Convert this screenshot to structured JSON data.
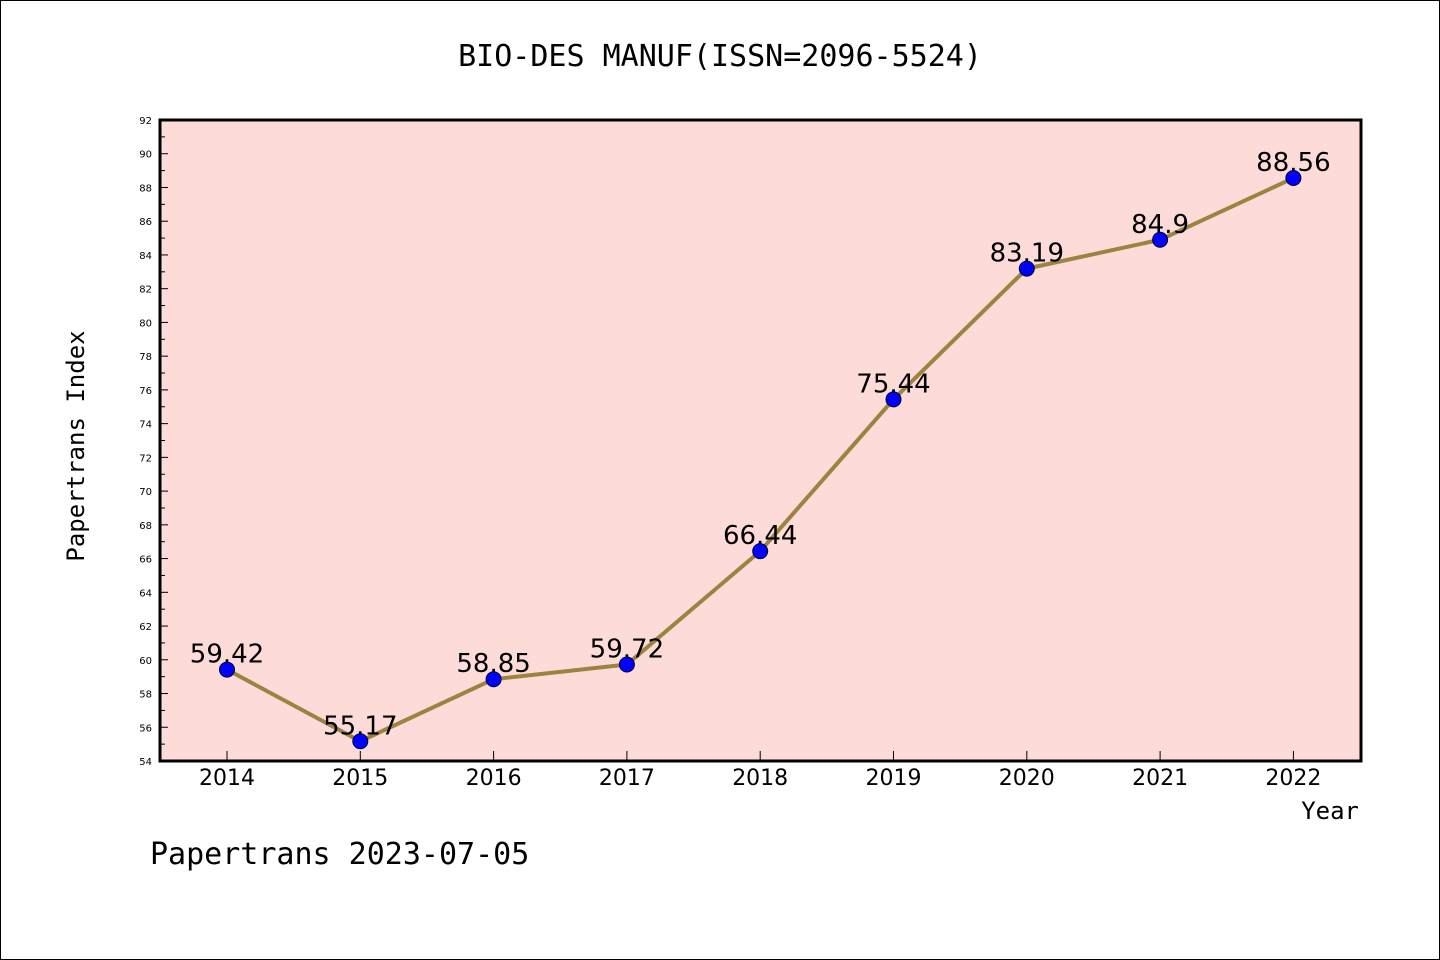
{
  "colors": {
    "plot_background": "#fddbd9",
    "line": "#9a8440",
    "marker": "#0000ff",
    "axis": "#000000"
  },
  "footer": "Papertrans 2023-07-05",
  "chart_data": {
    "type": "line",
    "title": "BIO-DES MANUF(ISSN=2096-5524)",
    "xlabel": "Year",
    "ylabel": "Papertrans Index",
    "x": [
      "2014",
      "2015",
      "2016",
      "2017",
      "2018",
      "2019",
      "2020",
      "2021",
      "2022"
    ],
    "series": [
      {
        "values": [
          59.42,
          55.17,
          58.85,
          59.72,
          66.44,
          75.44,
          83.19,
          84.9,
          88.56
        ],
        "labels": [
          "59.42",
          "55.17",
          "58.85",
          "59.72",
          "66.44",
          "75.44",
          "83.19",
          "84.9",
          "88.56"
        ]
      }
    ],
    "ylim": [
      54,
      92
    ],
    "yticks": [
      54,
      56,
      58,
      60,
      62,
      64,
      66,
      68,
      70,
      72,
      74,
      76,
      78,
      80,
      82,
      84,
      86,
      88,
      90,
      92
    ],
    "grid": false,
    "legend": "none"
  }
}
